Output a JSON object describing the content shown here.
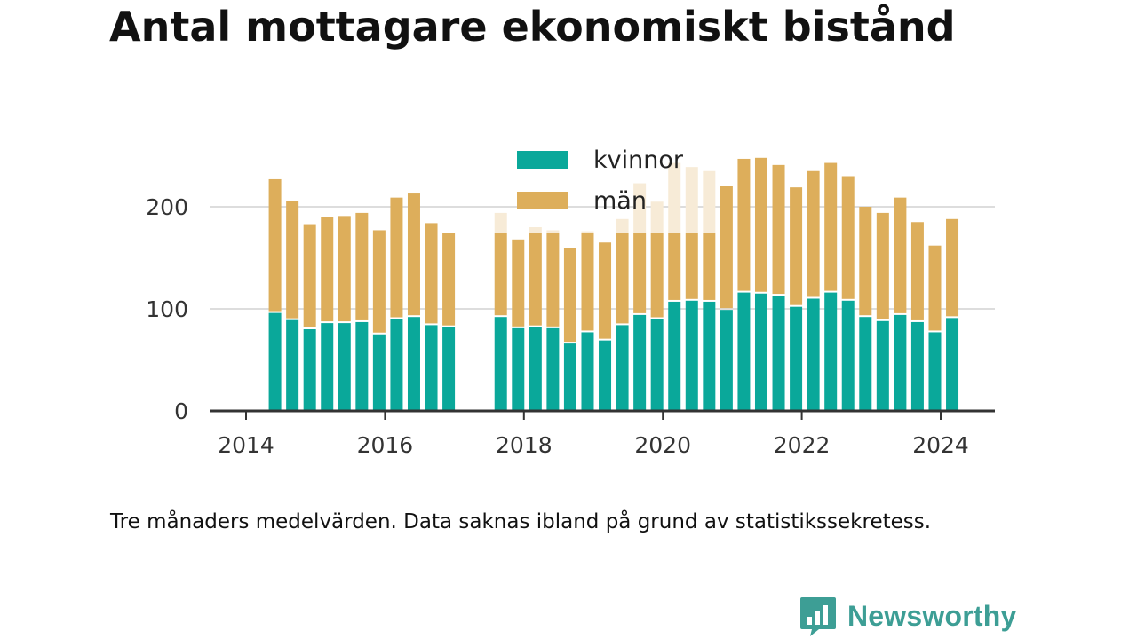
{
  "title": "Antal mottagare ekonomiskt bistånd",
  "note": "Tre månaders medelvärden. Data saknas ibland på grund av statistikssekretess.",
  "brand": {
    "name": "Newsworthy",
    "logo_icon": "bar-chart-speech-bubble-icon",
    "color": "#3d9e95"
  },
  "colors": {
    "kvinnor": "#0aa89a",
    "man": "#ddae5b",
    "man_faded": "#f7ebd7",
    "axis": "#333333",
    "grid": "#dddddd"
  },
  "chart_data": {
    "type": "bar",
    "stacked": true,
    "title": "Antal mottagare ekonomiskt bistånd",
    "xlabel": "",
    "ylabel": "",
    "ylim": [
      0,
      250
    ],
    "yticks": [
      0,
      100,
      200
    ],
    "ytick_labels": [
      "0",
      "100",
      "200"
    ],
    "xticks": [
      "2014",
      "2016",
      "2018",
      "2020",
      "2022",
      "2024"
    ],
    "grid": true,
    "legend_position": "top-center",
    "legend": [
      "kvinnor",
      "män"
    ],
    "x": [
      "2014-06",
      "2014-09",
      "2014-12",
      "2015-03",
      "2015-06",
      "2015-09",
      "2015-12",
      "2016-03",
      "2016-06",
      "2016-09",
      "2016-12",
      "2017-03",
      "2017-06",
      "2017-09",
      "2017-12",
      "2018-03",
      "2018-06",
      "2018-09",
      "2018-12",
      "2019-03",
      "2019-06",
      "2019-09",
      "2019-12",
      "2020-03",
      "2020-06",
      "2020-09",
      "2020-12",
      "2021-03",
      "2021-06",
      "2021-09",
      "2021-12",
      "2022-03",
      "2022-06",
      "2022-09",
      "2022-12",
      "2023-03",
      "2023-06",
      "2023-09",
      "2023-12",
      "2024-03"
    ],
    "series": [
      {
        "name": "kvinnor",
        "values": [
          96,
          89,
          80,
          86,
          86,
          87,
          75,
          90,
          92,
          84,
          82,
          null,
          null,
          92,
          81,
          82,
          81,
          66,
          77,
          69,
          84,
          94,
          90,
          107,
          108,
          107,
          99,
          116,
          115,
          113,
          102,
          110,
          116,
          108,
          92,
          88,
          94,
          87,
          77,
          91
        ]
      },
      {
        "name": "män",
        "values": [
          131,
          117,
          103,
          104,
          105,
          107,
          102,
          119,
          121,
          100,
          92,
          null,
          null,
          102,
          87,
          98,
          96,
          94,
          99,
          96,
          104,
          129,
          115,
          136,
          131,
          128,
          121,
          131,
          133,
          128,
          117,
          125,
          127,
          122,
          108,
          106,
          115,
          98,
          85,
          97
        ]
      }
    ]
  }
}
